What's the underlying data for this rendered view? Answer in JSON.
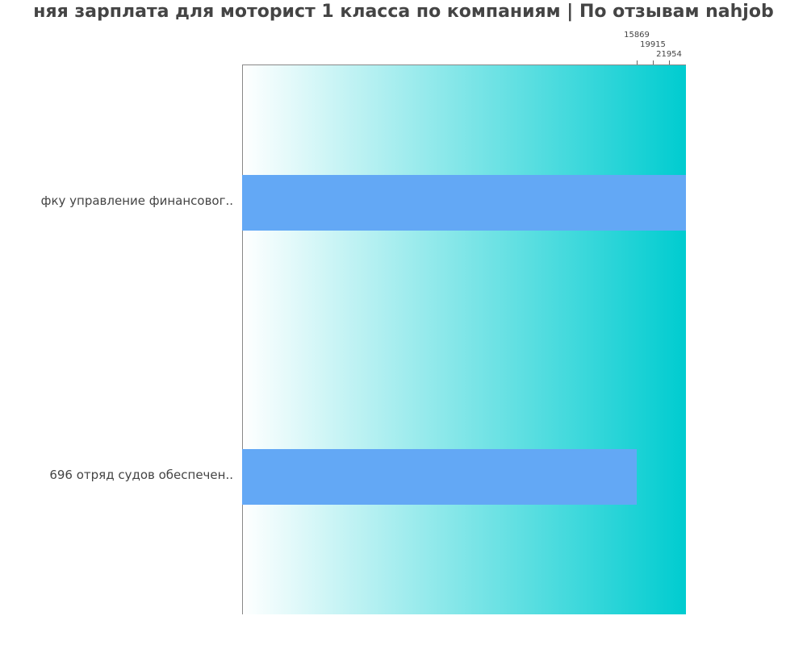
{
  "chart_data": {
    "type": "bar",
    "orientation": "horizontal",
    "title": "няя зарплата для моторист 1 класса по компаниям  | По отзывам nahjob",
    "categories": [
      "фку управление финансовог..",
      "696 отряд судов обеспечен.."
    ],
    "values": [
      17850,
      15869
    ],
    "tick_labels": [
      "15869",
      "19915",
      "21954"
    ],
    "axis_position": "top",
    "bar_color": "#63a8f5",
    "background_gradient": [
      "#ffffff",
      "#00ccd0"
    ],
    "grid": false
  }
}
